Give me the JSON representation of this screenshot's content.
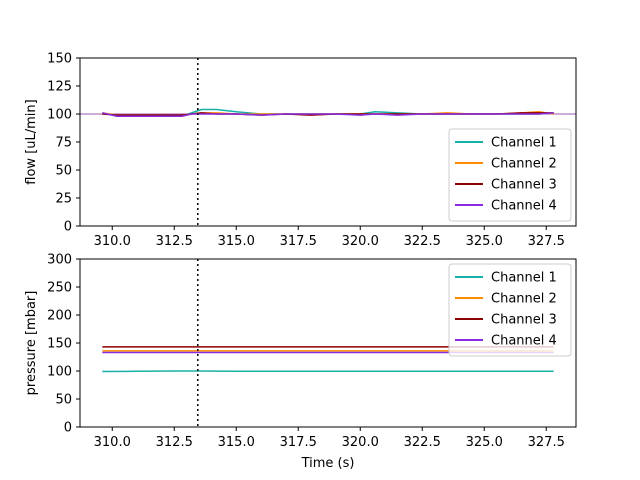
{
  "chart_data": [
    {
      "type": "line",
      "ylabel": "flow [uL/min]",
      "xlabel": "",
      "xlim": [
        308.7,
        328.7
      ],
      "ylim": [
        0,
        150
      ],
      "xticks": [
        "310.0",
        "312.5",
        "315.0",
        "317.5",
        "320.0",
        "322.5",
        "325.0",
        "327.5"
      ],
      "yticks": [
        "0",
        "25",
        "50",
        "75",
        "100",
        "125",
        "150"
      ],
      "reference_line_y": 100,
      "reference_line_color": "#9b59b6",
      "vline_x": 313.45,
      "legend_position": "lower-right",
      "x": [
        309.6,
        310.2,
        311.0,
        312.0,
        312.8,
        313.2,
        313.6,
        314.2,
        315.0,
        316.0,
        317.0,
        318.0,
        319.0,
        320.0,
        320.6,
        321.5,
        322.5,
        323.5,
        324.5,
        325.5,
        326.5,
        327.2,
        327.8
      ],
      "series": [
        {
          "name": "Channel 1",
          "color": "#17b0a8",
          "values": [
            101,
            98,
            98,
            98,
            98,
            101,
            104,
            104,
            102,
            100,
            100,
            100,
            100,
            100,
            102,
            101,
            100,
            100,
            100,
            100,
            100,
            100,
            101
          ]
        },
        {
          "name": "Channel 2",
          "color": "#ff8c00",
          "values": [
            101,
            99,
            99,
            99,
            98,
            100,
            101,
            101,
            100,
            100,
            100,
            100,
            100,
            100,
            100,
            100,
            100,
            101,
            100,
            100,
            101,
            102,
            100
          ]
        },
        {
          "name": "Channel 3",
          "color": "#8b0000",
          "values": [
            100,
            99,
            99,
            99,
            99,
            100,
            101,
            100,
            100,
            99,
            100,
            99,
            100,
            100,
            100,
            100,
            100,
            100,
            100,
            100,
            101,
            101,
            101
          ]
        },
        {
          "name": "Channel 4",
          "color": "#8a2be2",
          "values": [
            101,
            98,
            98,
            98,
            98,
            100,
            100,
            100,
            100,
            99,
            100,
            100,
            100,
            99,
            100,
            99,
            100,
            100,
            100,
            100,
            100,
            100,
            101
          ]
        }
      ]
    },
    {
      "type": "line",
      "ylabel": "pressure [mbar]",
      "xlabel": "Time (s)",
      "xlim": [
        308.7,
        328.7
      ],
      "ylim": [
        0,
        300
      ],
      "xticks": [
        "310.0",
        "312.5",
        "315.0",
        "317.5",
        "320.0",
        "322.5",
        "325.0",
        "327.5"
      ],
      "yticks": [
        "0",
        "50",
        "100",
        "150",
        "200",
        "250",
        "300"
      ],
      "vline_x": 313.45,
      "legend_position": "top-right",
      "x": [
        309.6,
        311.0,
        312.5,
        313.5,
        315.0,
        317.5,
        320.0,
        322.5,
        325.0,
        327.8
      ],
      "series": [
        {
          "name": "Channel 1",
          "color": "#17b0a8",
          "values": [
            99,
            99.5,
            100,
            100,
            99.5,
            99.5,
            99.5,
            99.5,
            99.5,
            99.5
          ]
        },
        {
          "name": "Channel 2",
          "color": "#ff8c00",
          "values": [
            136,
            136,
            136,
            136,
            136,
            136,
            136,
            136,
            136,
            136
          ]
        },
        {
          "name": "Channel 3",
          "color": "#8b0000",
          "values": [
            143,
            143,
            143,
            143,
            143,
            143,
            143,
            143,
            143,
            143
          ]
        },
        {
          "name": "Channel 4",
          "color": "#8a2be2",
          "values": [
            133,
            133,
            133,
            133,
            133,
            133,
            133,
            133,
            133,
            133
          ]
        }
      ]
    }
  ]
}
